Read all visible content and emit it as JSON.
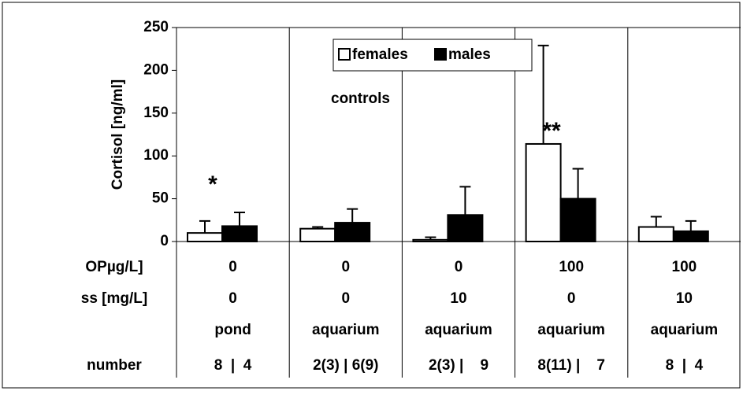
{
  "chart_data": {
    "type": "bar",
    "y_label": "Cortisol [ng/ml]",
    "ylim": [
      0,
      250
    ],
    "yticks": [
      0,
      50,
      100,
      150,
      200,
      250
    ],
    "series": [
      {
        "name": "females",
        "color": "#ffffff",
        "values": [
          10,
          15,
          2,
          114,
          17
        ],
        "errors": [
          14,
          2,
          3,
          115,
          12
        ]
      },
      {
        "name": "males",
        "color": "#000000",
        "values": [
          18,
          22,
          31,
          50,
          12
        ],
        "errors": [
          16,
          16,
          33,
          35,
          12
        ]
      }
    ],
    "annotations": [
      "*",
      "controls",
      "**"
    ]
  },
  "table": {
    "rows": [
      {
        "label": "OPµg/L]",
        "cells": [
          "0",
          "0",
          "0",
          "100",
          "100"
        ]
      },
      {
        "label": "ss [mg/L]",
        "cells": [
          "0",
          "0",
          "10",
          "0",
          "10"
        ]
      },
      {
        "cells": [
          "pond",
          "aquarium",
          "aquarium",
          "aquarium",
          "aquarium"
        ]
      },
      {
        "label": "number",
        "cells": [
          "8  |  4",
          "2(3) | 6(9)",
          "2(3) |    9",
          "8(11) |    7",
          "8  |  4"
        ]
      }
    ]
  }
}
